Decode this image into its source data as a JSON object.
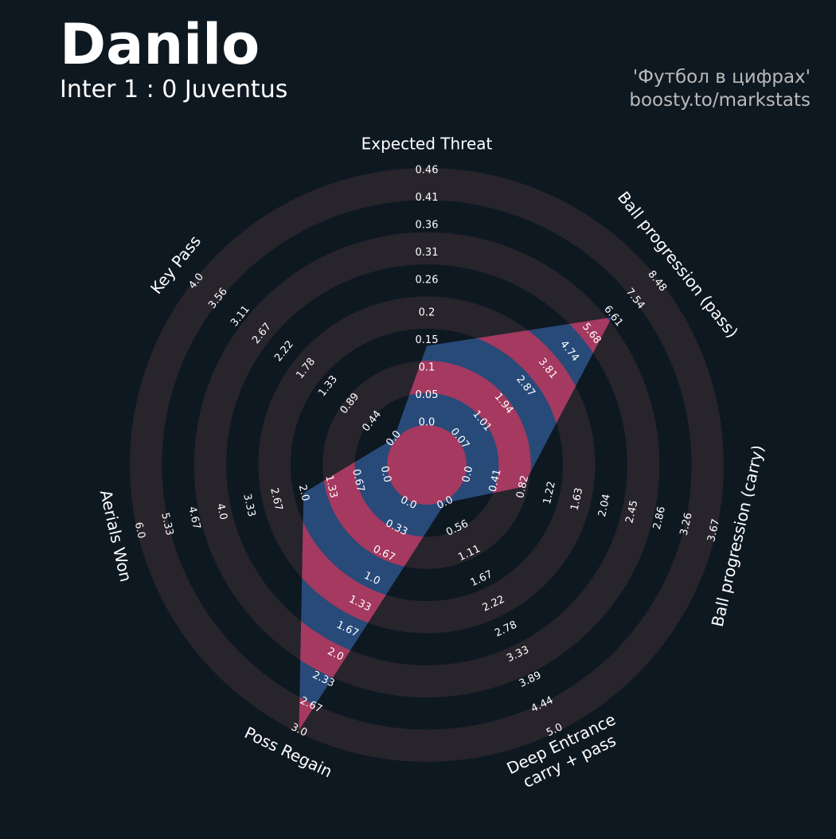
{
  "chart_data": {
    "type": "radar",
    "title": "Danilo",
    "subtitle": "Inter 1 : 0 Juventus",
    "credits": [
      "'Футбол в цифрах'",
      "boosty.to/markstats"
    ],
    "colors": {
      "polygon": "#274a79",
      "highlight": "#a5395f",
      "rings": "#28242b"
    },
    "params": [
      {
        "name": "Expected Threat",
        "value": 0.14,
        "lim": [
          0,
          0.46
        ],
        "ticks": [
          {
            "value": 0,
            "label": "0.0"
          },
          0.05,
          0.1,
          0.15,
          0.2,
          0.26,
          0.31,
          0.36,
          0.41,
          0.46
        ]
      },
      {
        "name": "Ball progression (pass)",
        "value": 6.55,
        "lim": [
          0.07,
          8.48
        ],
        "ticks": [
          0.07,
          1.01,
          1.94,
          2.87,
          3.81,
          4.74,
          5.68,
          6.61,
          7.54,
          8.48
        ]
      },
      {
        "name": "Ball progression (carry)",
        "value": 0.82,
        "lim": [
          0,
          3.67
        ],
        "ticks": [
          {
            "value": 0,
            "label": "0.0"
          },
          0.41,
          0.82,
          1.22,
          1.63,
          2.04,
          2.45,
          2.86,
          3.26,
          3.67
        ]
      },
      {
        "name": "Deep Entrance\ncarry + pass",
        "value": 0,
        "lim": [
          0,
          5
        ],
        "ticks": [
          {
            "value": 0,
            "label": "0.0"
          },
          0.56,
          1.11,
          1.67,
          2.22,
          2.78,
          3.33,
          3.89,
          4.44,
          {
            "value": 5,
            "label": "5.0"
          }
        ]
      },
      {
        "name": "Poss Regain",
        "value": 3,
        "lim": [
          0,
          3
        ],
        "ticks": [
          {
            "value": 0,
            "label": "0.0"
          },
          0.33,
          0.67,
          {
            "value": 1,
            "label": "1.0"
          },
          1.33,
          1.67,
          {
            "value": 2,
            "label": "2.0"
          },
          2.33,
          2.67,
          {
            "value": 3,
            "label": "3.0"
          }
        ]
      },
      {
        "name": "Aerials Won",
        "value": 2,
        "lim": [
          0,
          6
        ],
        "ticks": [
          {
            "value": 0,
            "label": "0.0"
          },
          0.67,
          1.33,
          {
            "value": 2,
            "label": "2.0"
          },
          2.67,
          3.33,
          {
            "value": 4,
            "label": "4.0"
          },
          4.67,
          5.33,
          {
            "value": 6,
            "label": "6.0"
          }
        ]
      },
      {
        "name": "Key Pass",
        "value": 0,
        "lim": [
          0,
          4
        ],
        "ticks": [
          {
            "value": 0,
            "label": "0.0"
          },
          0.44,
          0.89,
          1.33,
          1.78,
          2.22,
          2.67,
          3.11,
          3.56,
          {
            "value": 4,
            "label": "4.0"
          }
        ]
      }
    ]
  }
}
